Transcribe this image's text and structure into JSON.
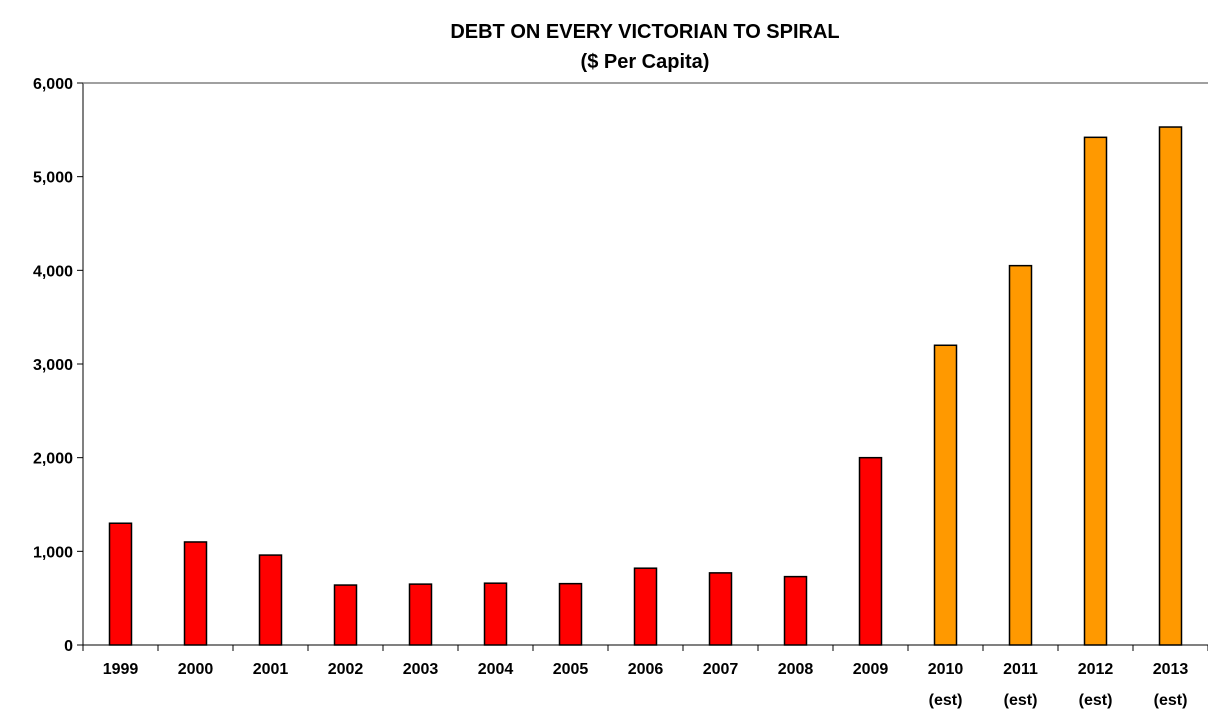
{
  "chart_data": {
    "type": "bar",
    "title": "DEBT ON  EVERY VICTORIAN TO SPIRAL",
    "subtitle": "($ Per Capita)",
    "xlabel": "",
    "ylabel": "",
    "ylim": [
      0,
      6000
    ],
    "yticks": [
      0,
      1000,
      2000,
      3000,
      4000,
      5000,
      6000
    ],
    "ytick_labels": [
      "0",
      "1,000",
      "2,000",
      "3,000",
      "4,000",
      "5,000",
      "6,000"
    ],
    "grid": false,
    "legend": "none",
    "categories": [
      [
        "1999"
      ],
      [
        "2000"
      ],
      [
        "2001"
      ],
      [
        "2002"
      ],
      [
        "2003"
      ],
      [
        "2004"
      ],
      [
        "2005"
      ],
      [
        "2006"
      ],
      [
        "2007"
      ],
      [
        "2008"
      ],
      [
        "2009"
      ],
      [
        "2010",
        "(est)"
      ],
      [
        "2011",
        "(est)"
      ],
      [
        "2012",
        "(est)"
      ],
      [
        "2013",
        "(est)"
      ]
    ],
    "values": [
      1300,
      1100,
      960,
      640,
      650,
      660,
      655,
      820,
      770,
      730,
      2000,
      3200,
      4050,
      5420,
      5530
    ],
    "bar_colors": [
      "#ff0000",
      "#ff0000",
      "#ff0000",
      "#ff0000",
      "#ff0000",
      "#ff0000",
      "#ff0000",
      "#ff0000",
      "#ff0000",
      "#ff0000",
      "#ff0000",
      "#ff9900",
      "#ff9900",
      "#ff9900",
      "#ff9900"
    ]
  }
}
